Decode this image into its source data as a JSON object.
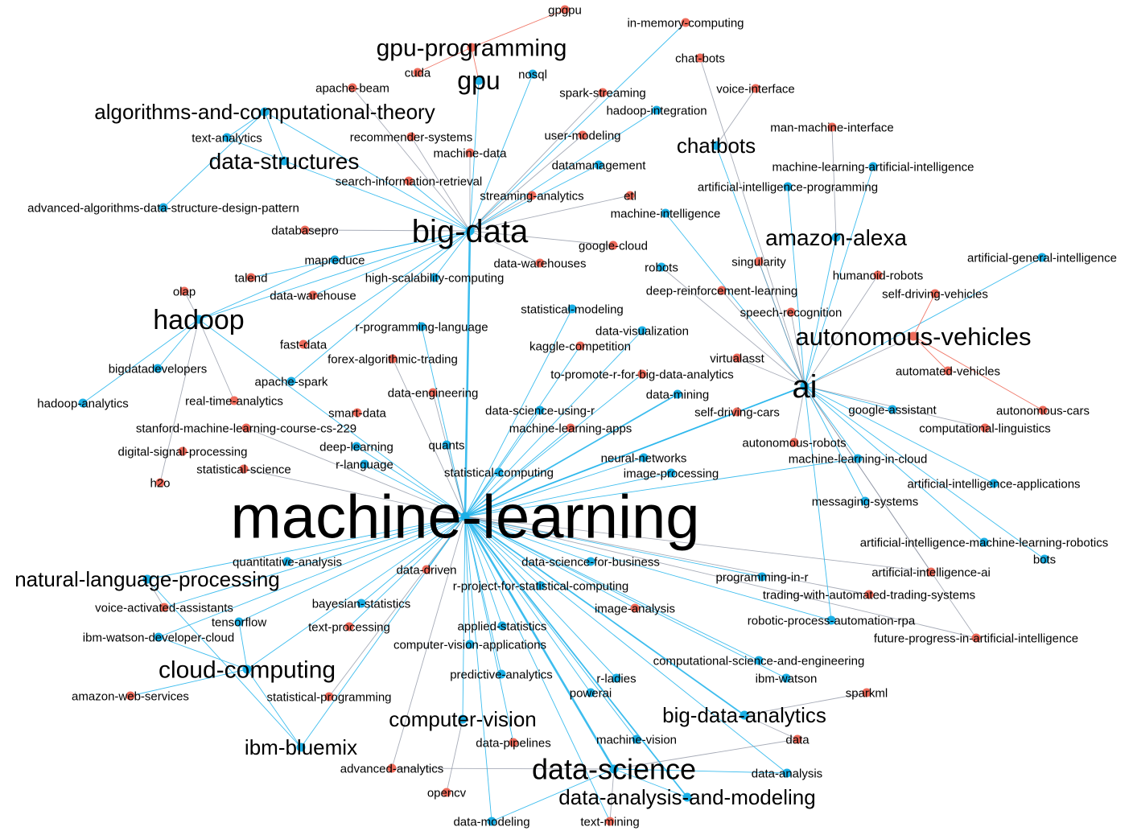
{
  "colors": {
    "blue": "#1cb0e6",
    "red": "#ee6b5b",
    "edge_blue": "#29b6ec",
    "edge_red": "#ee6b5b",
    "edge_gray": "#8a90a0"
  },
  "nodes": [
    {
      "id": "machine-learning",
      "color": "blue"
    },
    {
      "id": "big-data",
      "color": "blue"
    },
    {
      "id": "ai",
      "color": "blue"
    },
    {
      "id": "data-science",
      "color": "blue"
    },
    {
      "id": "hadoop",
      "color": "blue"
    },
    {
      "id": "data-structures",
      "color": "blue"
    },
    {
      "id": "algorithms-and-computational-theory",
      "color": "blue"
    },
    {
      "id": "gpu-programming",
      "color": "red"
    },
    {
      "id": "gpu",
      "color": "blue"
    },
    {
      "id": "chatbots",
      "color": "blue"
    },
    {
      "id": "amazon-alexa",
      "color": "blue"
    },
    {
      "id": "autonomous-vehicles",
      "color": "red"
    },
    {
      "id": "natural-language-processing",
      "color": "blue"
    },
    {
      "id": "cloud-computing",
      "color": "blue"
    },
    {
      "id": "ibm-bluemix",
      "color": "blue"
    },
    {
      "id": "computer-vision",
      "color": "blue"
    },
    {
      "id": "big-data-analytics",
      "color": "blue"
    },
    {
      "id": "data-analysis-and-modeling",
      "color": "blue"
    },
    {
      "id": "gpgpu",
      "color": "red"
    },
    {
      "id": "cuda",
      "color": "red"
    },
    {
      "id": "in-memory-computing",
      "color": "red"
    },
    {
      "id": "chat-bots",
      "color": "red"
    },
    {
      "id": "nosql",
      "color": "blue"
    },
    {
      "id": "apache-beam",
      "color": "red"
    },
    {
      "id": "spark-streaming",
      "color": "red"
    },
    {
      "id": "voice-interface",
      "color": "red"
    },
    {
      "id": "hadoop-integration",
      "color": "blue"
    },
    {
      "id": "man-machine-interface",
      "color": "red"
    },
    {
      "id": "text-analytics",
      "color": "blue"
    },
    {
      "id": "recommender-systems",
      "color": "red"
    },
    {
      "id": "user-modeling",
      "color": "red"
    },
    {
      "id": "machine-data",
      "color": "red"
    },
    {
      "id": "datamanagement",
      "color": "blue"
    },
    {
      "id": "machine-learning-artificial-intelligence",
      "color": "blue"
    },
    {
      "id": "search-information-retrieval",
      "color": "red"
    },
    {
      "id": "artificial-intelligence-programming",
      "color": "blue"
    },
    {
      "id": "advanced-algorithms-data-structure-design-pattern",
      "color": "blue"
    },
    {
      "id": "streaming-analytics",
      "color": "red"
    },
    {
      "id": "etl",
      "color": "red"
    },
    {
      "id": "machine-intelligence",
      "color": "blue"
    },
    {
      "id": "databasepro",
      "color": "red"
    },
    {
      "id": "google-cloud",
      "color": "red"
    },
    {
      "id": "mapreduce",
      "color": "blue"
    },
    {
      "id": "data-warehouses",
      "color": "red"
    },
    {
      "id": "robots",
      "color": "blue"
    },
    {
      "id": "singularity",
      "color": "red"
    },
    {
      "id": "artificial-general-intelligence",
      "color": "blue"
    },
    {
      "id": "talend",
      "color": "red"
    },
    {
      "id": "high-scalability-computing",
      "color": "blue"
    },
    {
      "id": "humanoid-robots",
      "color": "red"
    },
    {
      "id": "olap",
      "color": "red"
    },
    {
      "id": "data-warehouse",
      "color": "red"
    },
    {
      "id": "deep-reinforcement-learning",
      "color": "red"
    },
    {
      "id": "self-driving-vehicles",
      "color": "red"
    },
    {
      "id": "statistical-modeling",
      "color": "blue"
    },
    {
      "id": "speech-recognition",
      "color": "red"
    },
    {
      "id": "r-programming-language",
      "color": "blue"
    },
    {
      "id": "data-visualization",
      "color": "blue"
    },
    {
      "id": "fast-data",
      "color": "red"
    },
    {
      "id": "kaggle-competition",
      "color": "red"
    },
    {
      "id": "forex-algorithmic-trading",
      "color": "red"
    },
    {
      "id": "virtualasst",
      "color": "red"
    },
    {
      "id": "bigdatadevelopers",
      "color": "blue"
    },
    {
      "id": "to-promote-r-for-big-data-analytics",
      "color": "red"
    },
    {
      "id": "automated-vehicles",
      "color": "red"
    },
    {
      "id": "apache-spark",
      "color": "blue"
    },
    {
      "id": "data-engineering",
      "color": "red"
    },
    {
      "id": "data-mining",
      "color": "blue"
    },
    {
      "id": "hadoop-analytics",
      "color": "blue"
    },
    {
      "id": "real-time-analytics",
      "color": "red"
    },
    {
      "id": "google-assistant",
      "color": "blue"
    },
    {
      "id": "autonomous-cars",
      "color": "red"
    },
    {
      "id": "smart-data",
      "color": "red"
    },
    {
      "id": "data-science-using-r",
      "color": "blue"
    },
    {
      "id": "self-driving-cars",
      "color": "red"
    },
    {
      "id": "stanford-machine-learning-course-cs-229",
      "color": "red"
    },
    {
      "id": "machine-learning-apps",
      "color": "red"
    },
    {
      "id": "computational-linguistics",
      "color": "red"
    },
    {
      "id": "autonomous-robots",
      "color": "red"
    },
    {
      "id": "deep-learning",
      "color": "blue"
    },
    {
      "id": "quants",
      "color": "blue"
    },
    {
      "id": "digital-signal-processing",
      "color": "red"
    },
    {
      "id": "neural-networks",
      "color": "blue"
    },
    {
      "id": "machine-learning-in-cloud",
      "color": "blue"
    },
    {
      "id": "r-language",
      "color": "blue"
    },
    {
      "id": "statistical-science",
      "color": "red"
    },
    {
      "id": "statistical-computing",
      "color": "blue"
    },
    {
      "id": "image-processing",
      "color": "blue"
    },
    {
      "id": "h2o",
      "color": "red"
    },
    {
      "id": "artificial-intelligence-applications",
      "color": "blue"
    },
    {
      "id": "messaging-systems",
      "color": "blue"
    },
    {
      "id": "artificial-intelligence-machine-learning-robotics",
      "color": "blue"
    },
    {
      "id": "bots",
      "color": "blue"
    },
    {
      "id": "quantitative-analysis",
      "color": "blue"
    },
    {
      "id": "data-science-for-business",
      "color": "blue"
    },
    {
      "id": "data-driven",
      "color": "red"
    },
    {
      "id": "artificial-intelligence-ai",
      "color": "red"
    },
    {
      "id": "programming-in-r",
      "color": "blue"
    },
    {
      "id": "r-project-for-statistical-computing",
      "color": "blue"
    },
    {
      "id": "trading-with-automated-trading-systems",
      "color": "red"
    },
    {
      "id": "voice-activated-assistants",
      "color": "red"
    },
    {
      "id": "bayesian-statistics",
      "color": "blue"
    },
    {
      "id": "image-analysis",
      "color": "red"
    },
    {
      "id": "tensorflow",
      "color": "blue"
    },
    {
      "id": "robotic-process-automation-rpa",
      "color": "blue"
    },
    {
      "id": "text-processing",
      "color": "red"
    },
    {
      "id": "applied-statistics",
      "color": "blue"
    },
    {
      "id": "ibm-watson-developer-cloud",
      "color": "blue"
    },
    {
      "id": "future-progress-in-artificial-intelligence",
      "color": "red"
    },
    {
      "id": "computer-vision-applications",
      "color": "blue"
    },
    {
      "id": "computational-science-and-engineering",
      "color": "blue"
    },
    {
      "id": "predictive-analytics",
      "color": "blue"
    },
    {
      "id": "r-ladies",
      "color": "blue"
    },
    {
      "id": "ibm-watson",
      "color": "blue"
    },
    {
      "id": "amazon-web-services",
      "color": "red"
    },
    {
      "id": "powerai",
      "color": "blue"
    },
    {
      "id": "sparkml",
      "color": "red"
    },
    {
      "id": "statistical-programming",
      "color": "red"
    },
    {
      "id": "data",
      "color": "red"
    },
    {
      "id": "machine-vision",
      "color": "blue"
    },
    {
      "id": "data-pipelines",
      "color": "red"
    },
    {
      "id": "advanced-analytics",
      "color": "red"
    },
    {
      "id": "data-analysis",
      "color": "blue"
    },
    {
      "id": "opencv",
      "color": "red"
    },
    {
      "id": "data-modeling",
      "color": "blue"
    },
    {
      "id": "text-mining",
      "color": "red"
    }
  ]
}
